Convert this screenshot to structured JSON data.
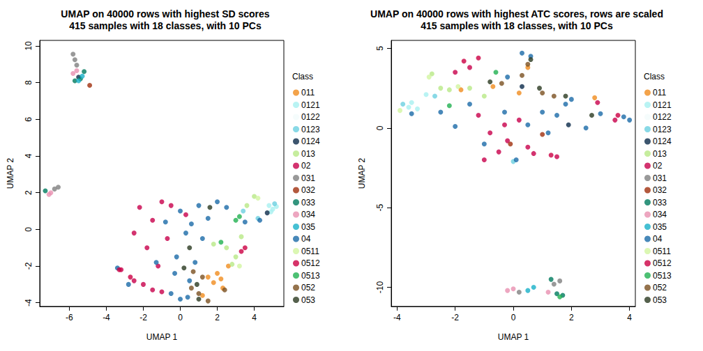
{
  "chart_data": [
    {
      "type": "scatter",
      "title": "UMAP on 40000 rows with highest SD scores",
      "subtitle": "415 samples with 18 classes, with 10 PCs",
      "x_label": "UMAP 1",
      "y_label": "UMAP 2",
      "legend_title": "Class",
      "legend": "right",
      "grid": false,
      "marker": "circle",
      "xlim": [
        -7.6,
        5.6
      ],
      "xticks": [
        -6,
        -4,
        -2,
        0,
        2,
        4
      ],
      "ylim": [
        -4.2,
        10.3
      ],
      "yticks": [
        -4,
        -2,
        0,
        2,
        4,
        6,
        8,
        10
      ],
      "series": [
        {
          "name": "011",
          "color": "#f08c1e",
          "values": [
            [
              1.5,
              -2.6
            ],
            [
              1.8,
              -2.9
            ],
            [
              2.0,
              -2.4
            ],
            [
              2.3,
              -3.2
            ],
            [
              1.2,
              -3.6
            ],
            [
              2.6,
              -2.0
            ],
            [
              2.2,
              -2.7
            ]
          ]
        },
        {
          "name": "0121",
          "color": "#a8f0f0",
          "values": [
            [
              4.8,
              1.3
            ],
            [
              5.0,
              1.1
            ],
            [
              5.2,
              1.25
            ],
            [
              4.9,
              0.95
            ]
          ]
        },
        {
          "name": "0122",
          "color": "#f2fbfb",
          "values": []
        },
        {
          "name": "0123",
          "color": "#6cd0e0",
          "values": [
            [
              4.2,
              0.6
            ],
            [
              3.4,
              1.0
            ],
            [
              5.1,
              1.4
            ]
          ]
        },
        {
          "name": "0124",
          "color": "#0b2a4a",
          "values": [
            [
              4.7,
              0.9
            ],
            [
              -5.5,
              8.3
            ]
          ]
        },
        {
          "name": "013",
          "color": "#b8e986",
          "values": [
            [
              2.8,
              -1.9
            ],
            [
              3.0,
              -1.5
            ],
            [
              3.3,
              -0.4
            ],
            [
              1.8,
              -0.8
            ],
            [
              4.0,
              1.8
            ],
            [
              3.6,
              1.3
            ],
            [
              2.5,
              -1.0
            ]
          ]
        },
        {
          "name": "02",
          "color": "#c8004b",
          "values": [
            [
              -2.5,
              -2.8
            ],
            [
              -2.0,
              -3.0
            ],
            [
              -1.5,
              -3.3
            ],
            [
              -1.0,
              -3.4
            ],
            [
              -1.8,
              -1.0
            ],
            [
              -1.5,
              0.5
            ],
            [
              -2.2,
              1.2
            ],
            [
              -1.0,
              1.5
            ],
            [
              -0.7,
              -0.5
            ],
            [
              -2.5,
              -0.2
            ],
            [
              -1.2,
              -2.0
            ],
            [
              -3.2,
              -2.2
            ],
            [
              -0.5,
              1.3
            ],
            [
              0.3,
              0.8
            ]
          ]
        },
        {
          "name": "031",
          "color": "#808080",
          "values": [
            [
              -5.8,
              9.55
            ],
            [
              -5.7,
              9.25
            ],
            [
              -5.6,
              8.95
            ],
            [
              -6.8,
              2.2
            ],
            [
              -6.6,
              2.3
            ]
          ]
        },
        {
          "name": "032",
          "color": "#a0300e",
          "values": [
            [
              -4.9,
              7.85
            ]
          ]
        },
        {
          "name": "033",
          "color": "#007a5e",
          "values": [
            [
              -5.7,
              8.1
            ],
            [
              -5.4,
              8.2
            ],
            [
              -5.2,
              8.6
            ],
            [
              -7.3,
              2.1
            ]
          ]
        },
        {
          "name": "034",
          "color": "#e890b0",
          "values": [
            [
              -5.8,
              8.5
            ],
            [
              -5.6,
              8.65
            ],
            [
              -7.0,
              2.0
            ],
            [
              -7.1,
              1.9
            ]
          ]
        },
        {
          "name": "035",
          "color": "#18b0c8",
          "values": [
            [
              -5.5,
              8.1
            ],
            [
              -5.3,
              8.35
            ]
          ]
        },
        {
          "name": "04",
          "color": "#1a6aa8",
          "values": [
            [
              -0.5,
              -3.5
            ],
            [
              0,
              -3.8
            ],
            [
              0.5,
              -2.8
            ],
            [
              -0.2,
              -1.5
            ],
            [
              0.3,
              -0.2
            ],
            [
              0,
              1.0
            ],
            [
              1.0,
              1.3
            ],
            [
              1.5,
              0.6
            ],
            [
              2.0,
              1.5
            ],
            [
              0.8,
              -1.8
            ],
            [
              -1.3,
              -1.8
            ],
            [
              -0.8,
              0.4
            ],
            [
              2.5,
              1.2
            ],
            [
              3.5,
              0.4
            ],
            [
              4.3,
              0.5
            ],
            [
              1.2,
              -0.5
            ],
            [
              -0.3,
              -2.4
            ],
            [
              0.6,
              0.3
            ],
            [
              -2.8,
              -3.0
            ],
            [
              -3.4,
              -2.1
            ],
            [
              0.4,
              -3.7
            ]
          ]
        },
        {
          "name": "0511",
          "color": "#d2f5a0",
          "values": [
            [
              4.2,
              1.7
            ],
            [
              3.2,
              -2.0
            ]
          ]
        },
        {
          "name": "0512",
          "color": "#cc0044",
          "values": [
            [
              -3.3,
              -2.2
            ],
            [
              -2.7,
              -2.6
            ],
            [
              3.5,
              -1.0
            ],
            [
              3.3,
              -1.2
            ]
          ]
        },
        {
          "name": "0513",
          "color": "#20b050",
          "values": [
            [
              3.0,
              0.5
            ],
            [
              3.2,
              0.7
            ],
            [
              2.2,
              -0.7
            ]
          ]
        },
        {
          "name": "052",
          "color": "#7a5020",
          "values": [
            [
              0.6,
              -3.2
            ],
            [
              1.0,
              -3.5
            ],
            [
              1.2,
              -2.6
            ],
            [
              0.7,
              -2.3
            ],
            [
              1.5,
              -3.9
            ],
            [
              2.4,
              -3.3
            ]
          ]
        },
        {
          "name": "053",
          "color": "#2a3a20",
          "values": [
            [
              0.5,
              -1.0
            ],
            [
              1.0,
              -3.8
            ],
            [
              0.2,
              -2.1
            ],
            [
              1.6,
              1.2
            ],
            [
              0.9,
              -3.0
            ]
          ]
        }
      ]
    },
    {
      "type": "scatter",
      "title": "UMAP on 40000 rows with highest ATC scores, rows are scaled",
      "subtitle": "415 samples with 18 classes, with 10 PCs",
      "x_label": "UMAP 1",
      "y_label": "UMAP 2",
      "legend_title": "Class",
      "legend": "right",
      "grid": false,
      "marker": "circle",
      "xlim": [
        -4.2,
        4.2
      ],
      "xticks": [
        -4,
        -2,
        0,
        2,
        4
      ],
      "ylim": [
        -11.2,
        5.5
      ],
      "yticks": [
        -10,
        -5,
        0,
        5
      ],
      "series": [
        {
          "name": "011",
          "color": "#f08c1e",
          "values": [
            [
              -0.7,
              2.6
            ],
            [
              0.5,
              3.8
            ],
            [
              2.8,
              1.9
            ],
            [
              -1.8,
              2.4
            ],
            [
              0.2,
              2.2
            ]
          ]
        },
        {
          "name": "0121",
          "color": "#a8f0f0",
          "values": [
            [
              -3.6,
              1.3
            ],
            [
              -3.5,
              1.6
            ],
            [
              -3.3,
              1.2
            ],
            [
              -3.0,
              2.1
            ]
          ]
        },
        {
          "name": "0122",
          "color": "#f2fbfb",
          "values": []
        },
        {
          "name": "0123",
          "color": "#6cd0e0",
          "values": [
            [
              -3.8,
              1.5
            ],
            [
              -2.7,
              2.0
            ],
            [
              0,
              -2.1
            ]
          ]
        },
        {
          "name": "0124",
          "color": "#0b2a4a",
          "values": [
            [
              1.9,
              0.2
            ],
            [
              0.3,
              2.6
            ]
          ]
        },
        {
          "name": "013",
          "color": "#b8e986",
          "values": [
            [
              -2.5,
              2.5
            ],
            [
              -2.2,
              2.4
            ],
            [
              -1.5,
              2.5
            ],
            [
              -2.8,
              3.4
            ],
            [
              -1.0,
              2.0
            ]
          ]
        },
        {
          "name": "02",
          "color": "#c8004b",
          "values": [
            [
              -1.0,
              -2.0
            ],
            [
              -0.5,
              -1.5
            ],
            [
              -0.2,
              -0.8
            ],
            [
              -0.8,
              -0.3
            ],
            [
              0.2,
              0.5
            ],
            [
              -1.2,
              0.8
            ],
            [
              0.5,
              -1.2
            ],
            [
              1.5,
              -1.8
            ],
            [
              -1.5,
              3.8
            ],
            [
              -2.0,
              3.5
            ],
            [
              0.7,
              -1.6
            ],
            [
              -0.3,
              0.2
            ],
            [
              2.9,
              1.6
            ],
            [
              3.5,
              0.5
            ]
          ]
        },
        {
          "name": "031",
          "color": "#808080",
          "values": [
            [
              0.2,
              -10.3
            ],
            [
              1.6,
              -9.6
            ],
            [
              1.4,
              -9.8
            ]
          ]
        },
        {
          "name": "032",
          "color": "#a0300e",
          "values": [
            [
              -0.1,
              -1.0
            ],
            [
              1.0,
              -0.4
            ]
          ]
        },
        {
          "name": "033",
          "color": "#007a5e",
          "values": [
            [
              1.3,
              -9.5
            ],
            [
              1.5,
              -10.4
            ],
            [
              1.7,
              -10.5
            ]
          ]
        },
        {
          "name": "034",
          "color": "#e890b0",
          "values": [
            [
              -0.2,
              -10.2
            ],
            [
              0,
              -10.1
            ],
            [
              1.2,
              -10.3
            ]
          ]
        },
        {
          "name": "035",
          "color": "#18b0c8",
          "values": [
            [
              0.7,
              -10.0
            ],
            [
              0.5,
              -10.2
            ]
          ]
        },
        {
          "name": "04",
          "color": "#1a6aa8",
          "values": [
            [
              -3.5,
              0.9
            ],
            [
              -2.5,
              1.0
            ],
            [
              -1.5,
              1.5
            ],
            [
              -0.3,
              1.0
            ],
            [
              0.5,
              0.2
            ],
            [
              1.0,
              1.0
            ],
            [
              1.5,
              0.8
            ],
            [
              2.0,
              1.8
            ],
            [
              3.0,
              0.9
            ],
            [
              3.8,
              0.7
            ],
            [
              4.0,
              0.5
            ],
            [
              -1.0,
              -1.0
            ],
            [
              0.1,
              -2.0
            ],
            [
              0.3,
              4.7
            ],
            [
              0.6,
              4.5
            ],
            [
              1.2,
              -0.3
            ],
            [
              -2.0,
              0.1
            ],
            [
              2.5,
              0.0
            ],
            [
              -0.2,
              3.2
            ],
            [
              1.8,
              1.5
            ]
          ]
        },
        {
          "name": "0511",
          "color": "#d2f5a0",
          "values": [
            [
              -3.9,
              1.1
            ],
            [
              -1.9,
              2.6
            ],
            [
              -2.9,
              3.2
            ]
          ]
        },
        {
          "name": "0512",
          "color": "#cc0044",
          "values": [
            [
              -1.7,
              4.2
            ],
            [
              -1.2,
              4.4
            ],
            [
              1.3,
              -1.7
            ],
            [
              3.6,
              0.8
            ]
          ]
        },
        {
          "name": "0513",
          "color": "#20b050",
          "values": [
            [
              -2.2,
              1.4
            ],
            [
              1.6,
              -10.6
            ],
            [
              -0.6,
              3.5
            ]
          ]
        },
        {
          "name": "052",
          "color": "#7a5020",
          "values": [
            [
              0.5,
              4.0
            ],
            [
              1.0,
              2.2
            ],
            [
              0.3,
              3.3
            ],
            [
              -0.4,
              2.8
            ],
            [
              1.4,
              2.0
            ]
          ]
        },
        {
          "name": "053",
          "color": "#2a3a20",
          "values": [
            [
              0.6,
              4.3
            ],
            [
              0.9,
              2.5
            ],
            [
              -0.8,
              2.9
            ],
            [
              1.8,
              2.0
            ],
            [
              2.7,
              0.8
            ]
          ]
        }
      ]
    }
  ]
}
